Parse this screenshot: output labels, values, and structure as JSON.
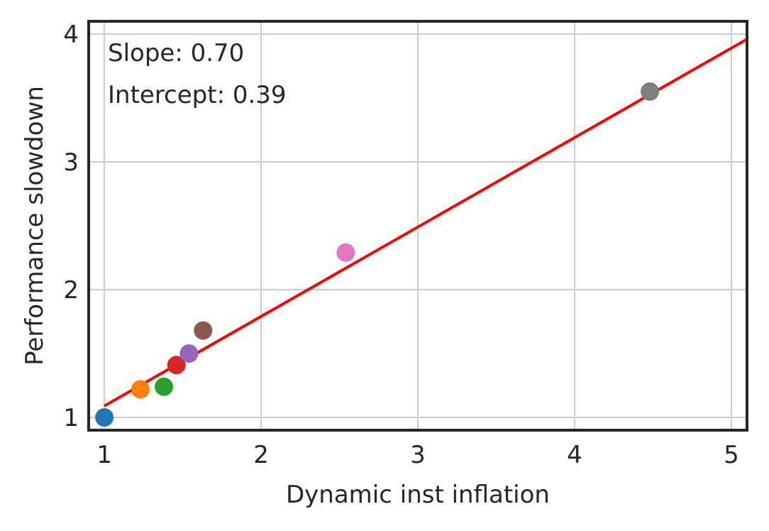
{
  "chart_data": {
    "type": "scatter",
    "xlabel": "Dynamic inst inflation",
    "ylabel": "Performance slowdown",
    "xlim": [
      0.9,
      5.1
    ],
    "ylim": [
      0.9,
      4.1
    ],
    "x_ticks": [
      1,
      2,
      3,
      4,
      5
    ],
    "y_ticks": [
      1,
      2,
      3,
      4
    ],
    "grid": true,
    "points": [
      {
        "x": 1.0,
        "y": 1.0,
        "color": "#1f77b4"
      },
      {
        "x": 1.23,
        "y": 1.22,
        "color": "#ff7f0e"
      },
      {
        "x": 1.38,
        "y": 1.24,
        "color": "#2ca02c"
      },
      {
        "x": 1.46,
        "y": 1.41,
        "color": "#d62728"
      },
      {
        "x": 1.54,
        "y": 1.5,
        "color": "#9467bd"
      },
      {
        "x": 1.63,
        "y": 1.68,
        "color": "#8c564b"
      },
      {
        "x": 2.54,
        "y": 2.29,
        "color": "#e377c2"
      },
      {
        "x": 4.48,
        "y": 3.55,
        "color": "#7f7f7f"
      }
    ],
    "fit_line": {
      "slope": 0.7,
      "intercept": 0.39,
      "x_range": [
        1.0,
        5.1
      ],
      "color": "#ff0000"
    },
    "annotations": {
      "slope_text": "Slope: 0.70",
      "intercept_text": "Intercept: 0.39"
    }
  }
}
